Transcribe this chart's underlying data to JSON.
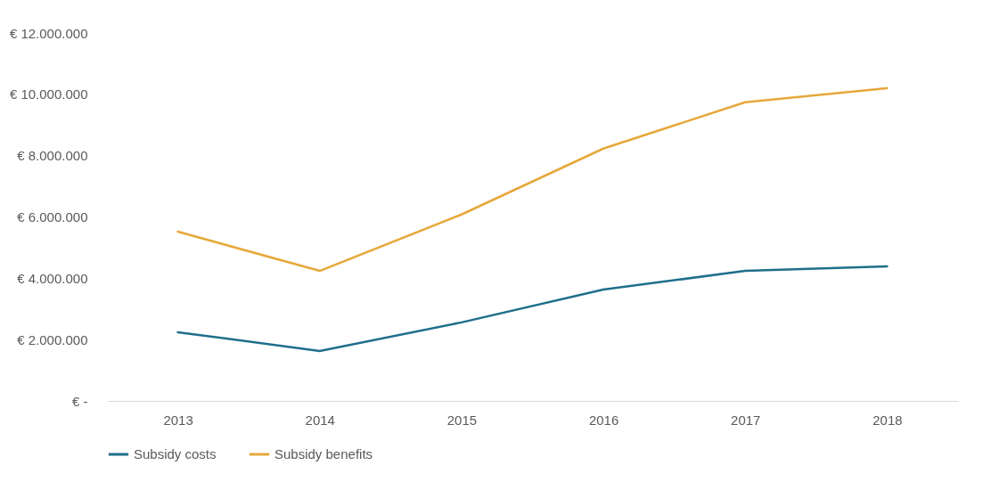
{
  "chart_data": {
    "type": "line",
    "categories": [
      "2013",
      "2014",
      "2015",
      "2016",
      "2017",
      "2018"
    ],
    "series": [
      {
        "name": "Subsidy costs",
        "color": "#1f6f8b",
        "values": [
          2240000,
          1630000,
          2560000,
          3630000,
          4240000,
          4390000
        ]
      },
      {
        "name": "Subsidy benefits",
        "color": "#e6a83a",
        "values": [
          5520000,
          4240000,
          6080000,
          8230000,
          9740000,
          10200000
        ]
      }
    ],
    "ylim": [
      0,
      12000000
    ],
    "yticks": [
      {
        "value": 0,
        "label": "€ -"
      },
      {
        "value": 2000000,
        "label": "€ 2.000.000"
      },
      {
        "value": 4000000,
        "label": "€ 4.000.000"
      },
      {
        "value": 6000000,
        "label": "€ 6.000.000"
      },
      {
        "value": 8000000,
        "label": "€ 8.000.000"
      },
      {
        "value": 10000000,
        "label": "€ 10.000.000"
      },
      {
        "value": 12000000,
        "label": "€ 12.000.000"
      }
    ],
    "grid": false,
    "legend": "bottom",
    "marker": "none",
    "line_style": "solid"
  }
}
